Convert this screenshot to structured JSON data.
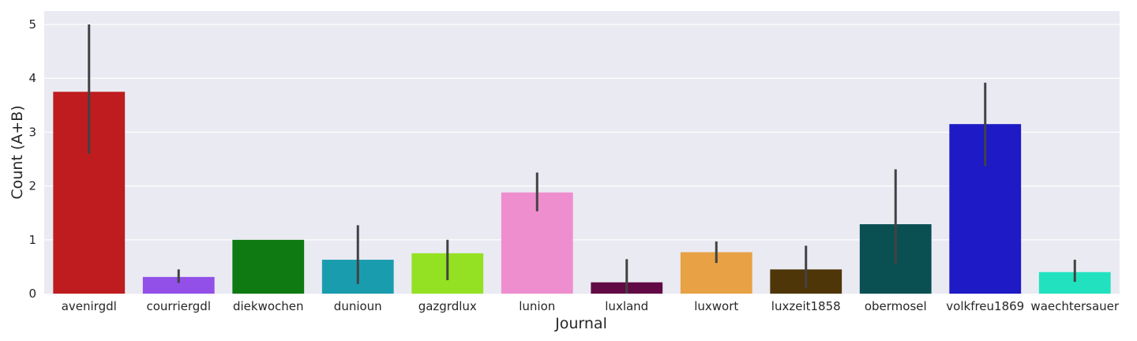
{
  "chart_data": {
    "type": "bar",
    "xlabel": "Journal",
    "ylabel": "Count (A+B)",
    "ylim": [
      0,
      5.25
    ],
    "yticks": [
      "0",
      "1",
      "2",
      "3",
      "4",
      "5"
    ],
    "grid": true,
    "background": "#eaeaf2",
    "categories": [
      "avenirgdl",
      "courriergdl",
      "diekwochen",
      "dunioun",
      "gazgrdlux",
      "lunion",
      "luxland",
      "luxwort",
      "luxzeit1858",
      "obermosel",
      "volkfreu1869",
      "waechtersauer"
    ],
    "values": [
      3.75,
      0.31,
      1.0,
      0.63,
      0.75,
      1.88,
      0.21,
      0.77,
      0.45,
      1.29,
      3.15,
      0.4
    ],
    "error_low": [
      2.6,
      0.2,
      1.0,
      0.18,
      0.25,
      1.53,
      0.0,
      0.57,
      0.1,
      0.55,
      2.37,
      0.22
    ],
    "error_high": [
      5.0,
      0.45,
      1.0,
      1.27,
      1.0,
      2.25,
      0.64,
      0.97,
      0.89,
      2.31,
      3.92,
      0.63
    ],
    "colors": [
      "#be1c1e",
      "#9250e8",
      "#0f7a12",
      "#1a9caf",
      "#93e122",
      "#ef8ece",
      "#620a45",
      "#e8a145",
      "#4e3609",
      "#0a5053",
      "#1d1ac6",
      "#22e1bf"
    ]
  }
}
